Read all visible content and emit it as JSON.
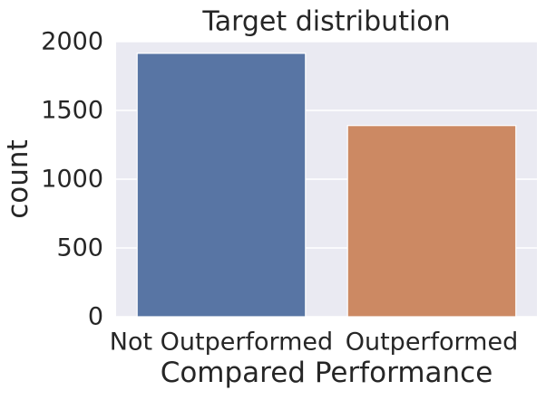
{
  "chart_data": {
    "type": "bar",
    "title": "Target distribution",
    "xlabel": "Compared Performance",
    "ylabel": "count",
    "categories": [
      "Not Outperformed",
      "Outperformed"
    ],
    "values": [
      1915,
      1390
    ],
    "bar_colors": [
      "#5875a4",
      "#cc8963"
    ],
    "ylim": [
      0,
      2000
    ],
    "yticks": [
      0,
      500,
      1000,
      1500,
      2000
    ],
    "grid": true,
    "background_color": "#eaeaf2"
  }
}
